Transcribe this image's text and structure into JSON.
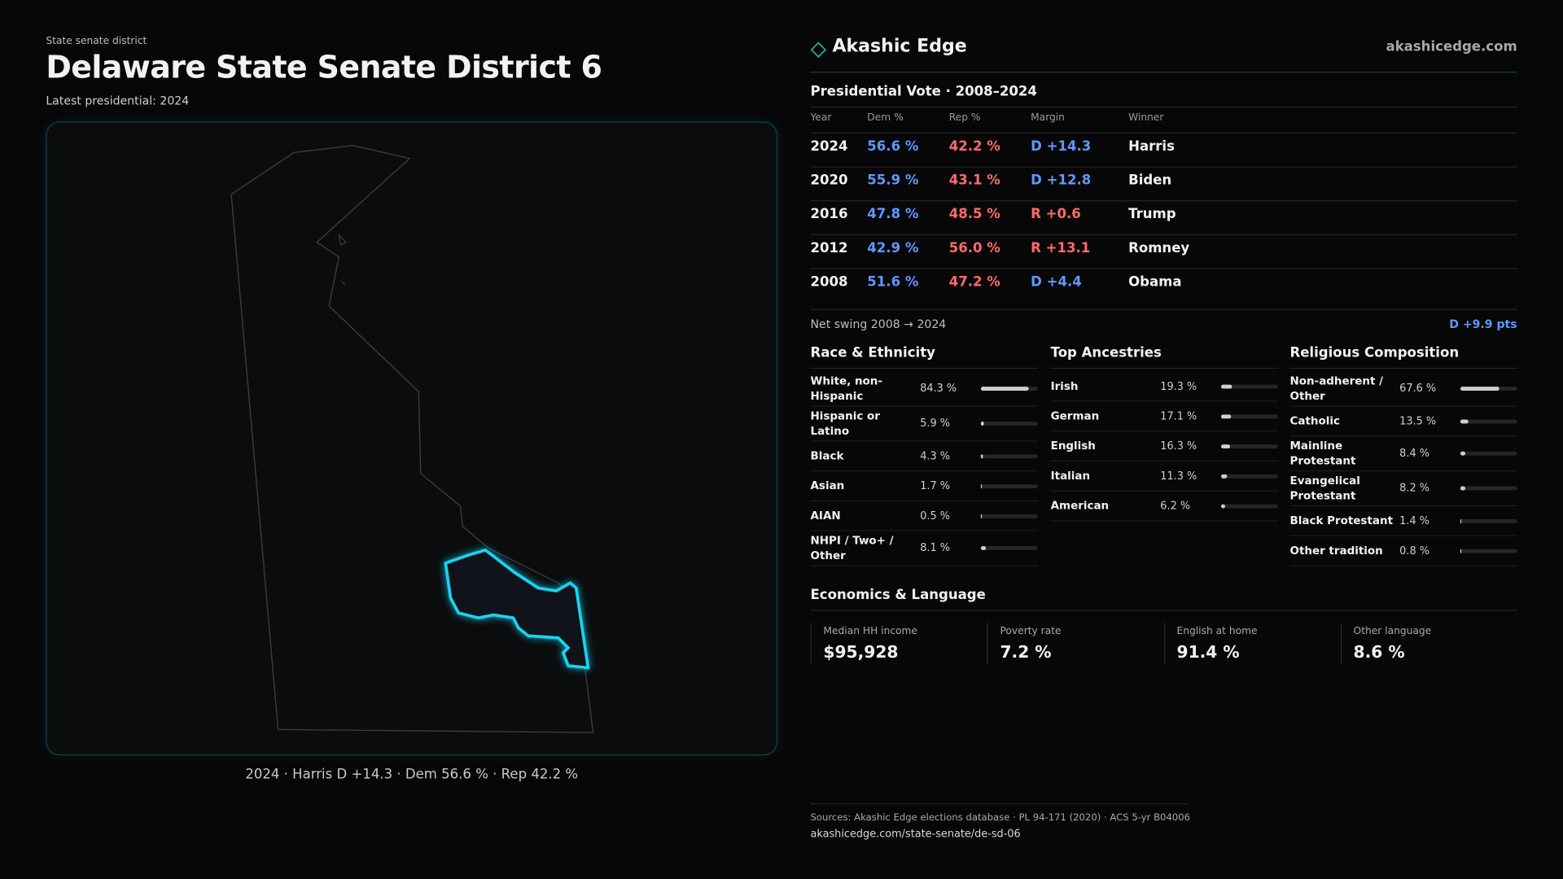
{
  "header": {
    "eyebrow": "State senate district",
    "title": "Delaware State Senate District 6",
    "subtitle": "Latest presidential: 2024"
  },
  "map": {
    "caption": "2024 · Harris D +14.3 · Dem 56.6 % · Rep 42.2 %"
  },
  "brand": {
    "name": "Akashic Edge",
    "url": "akashicedge.com"
  },
  "vote": {
    "title": "Presidential Vote · 2008–2024",
    "columns": [
      "Year",
      "Dem %",
      "Rep %",
      "Margin",
      "Winner"
    ],
    "rows": [
      [
        "2024",
        "56.6 %",
        "42.2 %",
        "D +14.3",
        "Harris"
      ],
      [
        "2020",
        "55.9 %",
        "43.1 %",
        "D +12.8",
        "Biden"
      ],
      [
        "2016",
        "47.8 %",
        "48.5 %",
        "R +0.6",
        "Trump"
      ],
      [
        "2012",
        "42.9 %",
        "56.0 %",
        "R +13.1",
        "Romney"
      ],
      [
        "2008",
        "51.6 %",
        "47.2 %",
        "D +4.4",
        "Obama"
      ]
    ],
    "swing_label": "Net swing 2008 → 2024",
    "swing_value": "D +9.9 pts"
  },
  "sections": [
    {
      "title": "Race & Ethnicity",
      "rows": [
        {
          "name": "White, non-Hispanic",
          "pct": 84.3,
          "pct_label": "84.3 %"
        },
        {
          "name": "Hispanic or Latino",
          "pct": 5.9,
          "pct_label": "5.9 %"
        },
        {
          "name": "Black",
          "pct": 4.3,
          "pct_label": "4.3 %"
        },
        {
          "name": "Asian",
          "pct": 1.7,
          "pct_label": "1.7 %"
        },
        {
          "name": "AIAN",
          "pct": 0.5,
          "pct_label": "0.5 %"
        },
        {
          "name": "NHPI / Two+ / Other",
          "pct": 8.1,
          "pct_label": "8.1 %"
        }
      ]
    },
    {
      "title": "Top Ancestries",
      "rows": [
        {
          "name": "Irish",
          "pct": 19.3,
          "pct_label": "19.3 %"
        },
        {
          "name": "German",
          "pct": 17.1,
          "pct_label": "17.1 %"
        },
        {
          "name": "English",
          "pct": 16.3,
          "pct_label": "16.3 %"
        },
        {
          "name": "Italian",
          "pct": 11.3,
          "pct_label": "11.3 %"
        },
        {
          "name": "American",
          "pct": 6.2,
          "pct_label": "6.2 %"
        }
      ]
    },
    {
      "title": "Religious Composition",
      "rows": [
        {
          "name": "Non-adherent / Other",
          "pct": 67.6,
          "pct_label": "67.6 %"
        },
        {
          "name": "Catholic",
          "pct": 13.5,
          "pct_label": "13.5 %"
        },
        {
          "name": "Mainline Protestant",
          "pct": 8.4,
          "pct_label": "8.4 %"
        },
        {
          "name": "Evangelical Protestant",
          "pct": 8.2,
          "pct_label": "8.2 %"
        },
        {
          "name": "Black Protestant",
          "pct": 1.4,
          "pct_label": "1.4 %"
        },
        {
          "name": "Other tradition",
          "pct": 0.8,
          "pct_label": "0.8 %"
        }
      ]
    }
  ],
  "economics": {
    "title": "Economics & Language",
    "cards": [
      {
        "label": "Median HH income",
        "value": "$95,928"
      },
      {
        "label": "Poverty rate",
        "value": "7.2 %"
      },
      {
        "label": "English at home",
        "value": "91.4 %"
      },
      {
        "label": "Other language",
        "value": "8.6 %"
      }
    ]
  },
  "footer": {
    "sources": "Sources: Akashic Edge elections database · PL 94-171 (2020) · ACS 5-yr B04006",
    "url": "akashicedge.com/state-senate/de-sd-06"
  }
}
